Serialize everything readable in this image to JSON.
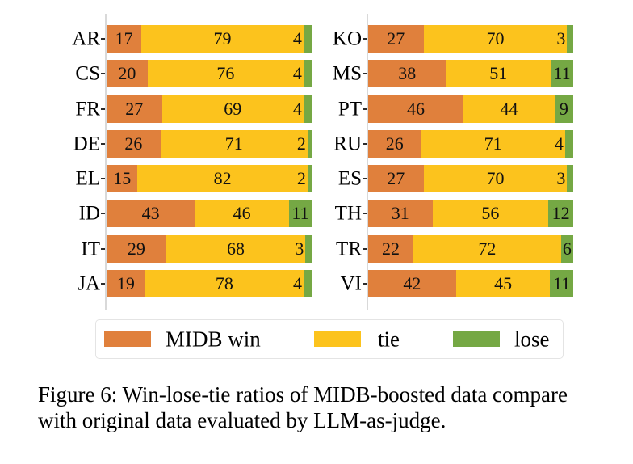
{
  "figure": {
    "caption_line1": "Figure 6: Win-lose-tie ratios of MIDB-boosted data compare",
    "caption_line2": "with original data evaluated by LLM-as-judge."
  },
  "legend": {
    "items": [
      {
        "label": "MIDB win",
        "color": "#e0803c"
      },
      {
        "label": "tie",
        "color": "#fcc31d"
      },
      {
        "label": "lose",
        "color": "#75a844"
      }
    ]
  },
  "chart_data": {
    "type": "bar",
    "orientation": "horizontal_stacked",
    "series_names": [
      "MIDB win",
      "tie",
      "lose"
    ],
    "xlim": [
      0,
      100
    ],
    "legend_position": "bottom",
    "colors": {
      "win": "#e0803c",
      "tie": "#fcc31d",
      "lose": "#75a844"
    },
    "axis_color": "#d9d9d9",
    "panels": [
      {
        "rows": [
          {
            "label": "AR",
            "win": 17,
            "tie": 79,
            "lose": 4
          },
          {
            "label": "CS",
            "win": 20,
            "tie": 76,
            "lose": 4
          },
          {
            "label": "FR",
            "win": 27,
            "tie": 69,
            "lose": 4
          },
          {
            "label": "DE",
            "win": 26,
            "tie": 71,
            "lose": 2
          },
          {
            "label": "EL",
            "win": 15,
            "tie": 82,
            "lose": 2
          },
          {
            "label": "ID",
            "win": 43,
            "tie": 46,
            "lose": 11
          },
          {
            "label": "IT",
            "win": 29,
            "tie": 68,
            "lose": 3
          },
          {
            "label": "JA",
            "win": 19,
            "tie": 78,
            "lose": 4
          }
        ]
      },
      {
        "rows": [
          {
            "label": "KO",
            "win": 27,
            "tie": 70,
            "lose": 3
          },
          {
            "label": "MS",
            "win": 38,
            "tie": 51,
            "lose": 11
          },
          {
            "label": "PT",
            "win": 46,
            "tie": 44,
            "lose": 9
          },
          {
            "label": "RU",
            "win": 26,
            "tie": 71,
            "lose": 4
          },
          {
            "label": "ES",
            "win": 27,
            "tie": 70,
            "lose": 3
          },
          {
            "label": "TH",
            "win": 31,
            "tie": 56,
            "lose": 12
          },
          {
            "label": "TR",
            "win": 22,
            "tie": 72,
            "lose": 6
          },
          {
            "label": "VI",
            "win": 42,
            "tie": 45,
            "lose": 11
          }
        ]
      }
    ]
  }
}
